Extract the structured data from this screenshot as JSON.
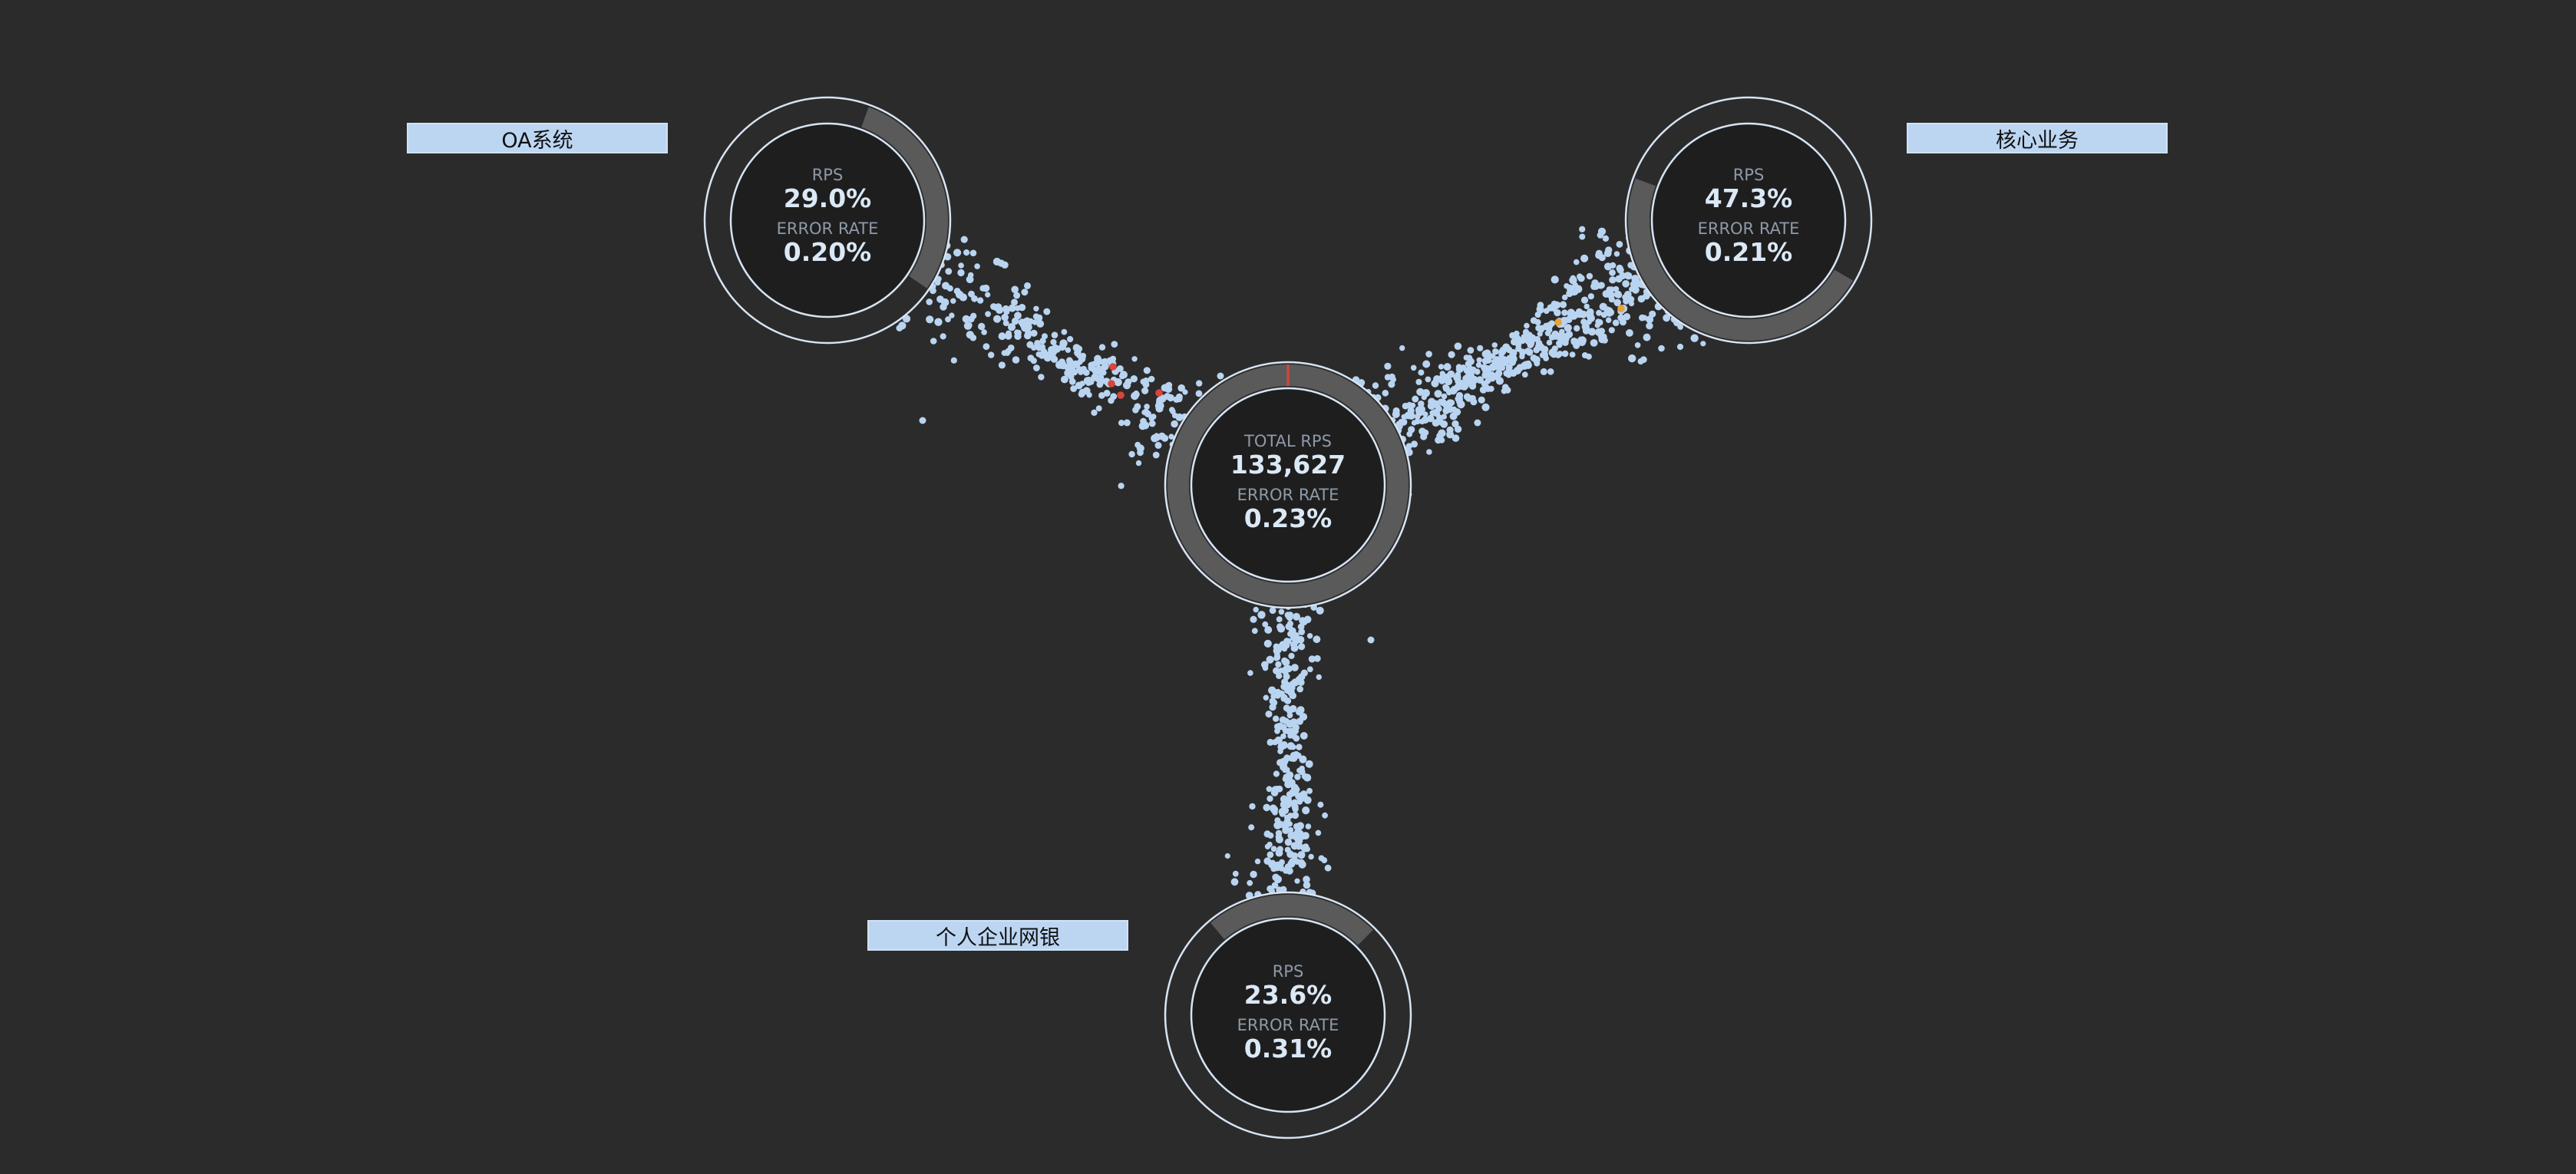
{
  "center": {
    "rps_label": "TOTAL RPS",
    "rps_value": "133,627",
    "error_label": "ERROR RATE",
    "error_value": "0.23%"
  },
  "nodes": [
    {
      "id": "oa",
      "label": "OA系统",
      "rps_label": "RPS",
      "rps_value": "29.0%",
      "error_label": "ERROR RATE",
      "error_value": "0.20%",
      "share": 0.29
    },
    {
      "id": "core",
      "label": "核心业务",
      "rps_label": "RPS",
      "rps_value": "47.3%",
      "error_label": "ERROR RATE",
      "error_value": "0.21%",
      "share": 0.473
    },
    {
      "id": "personal",
      "label": "个人企业网银",
      "rps_label": "RPS",
      "rps_value": "23.6%",
      "error_label": "ERROR RATE",
      "error_value": "0.31%",
      "share": 0.236
    }
  ],
  "colors": {
    "background": "#2b2b2b",
    "ring": "#5a5a5a",
    "ring_outline": "#d6e4f3",
    "dot": "#b9d4f0",
    "error_dot": "#d9453b",
    "warn_dot": "#e6a33a",
    "label_box": "#bcd6f2"
  }
}
